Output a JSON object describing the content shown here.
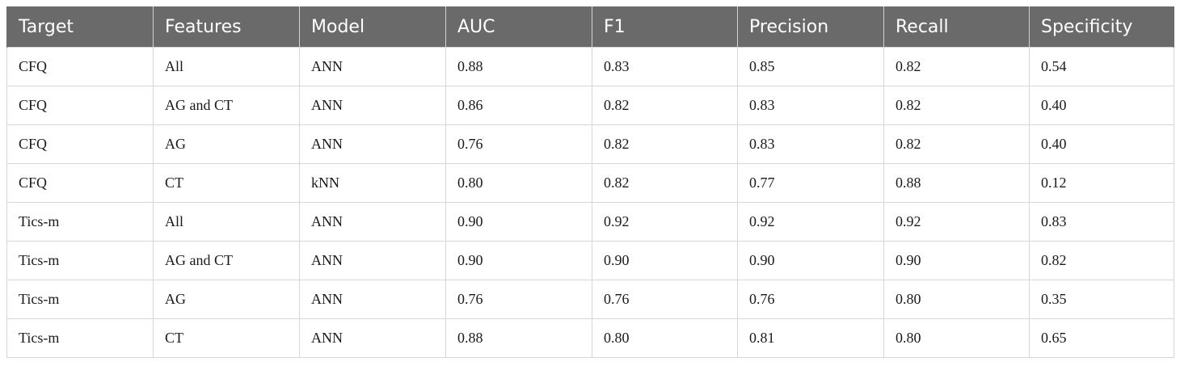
{
  "table": {
    "headers": [
      "Target",
      "Features",
      "Model",
      "AUC",
      "F1",
      "Precision",
      "Recall",
      "Specificity"
    ],
    "rows": [
      [
        "CFQ",
        "All",
        "ANN",
        "0.88",
        "0.83",
        "0.85",
        "0.82",
        "0.54"
      ],
      [
        "CFQ",
        "AG and CT",
        "ANN",
        "0.86",
        "0.82",
        "0.83",
        "0.82",
        "0.40"
      ],
      [
        "CFQ",
        "AG",
        "ANN",
        "0.76",
        "0.82",
        "0.83",
        "0.82",
        "0.40"
      ],
      [
        "CFQ",
        "CT",
        "kNN",
        "0.80",
        "0.82",
        "0.77",
        "0.88",
        "0.12"
      ],
      [
        "Tics-m",
        "All",
        "ANN",
        "0.90",
        "0.92",
        "0.92",
        "0.92",
        "0.83"
      ],
      [
        "Tics-m",
        "AG and CT",
        "ANN",
        "0.90",
        "0.90",
        "0.90",
        "0.90",
        "0.82"
      ],
      [
        "Tics-m",
        "AG",
        "ANN",
        "0.76",
        "0.76",
        "0.76",
        "0.80",
        "0.35"
      ],
      [
        "Tics-m",
        "CT",
        "ANN",
        "0.88",
        "0.80",
        "0.81",
        "0.80",
        "0.65"
      ]
    ]
  },
  "colors": {
    "header_bg": "#6a6a6a",
    "header_text": "#ffffff",
    "grid": "#d6d6d6"
  }
}
